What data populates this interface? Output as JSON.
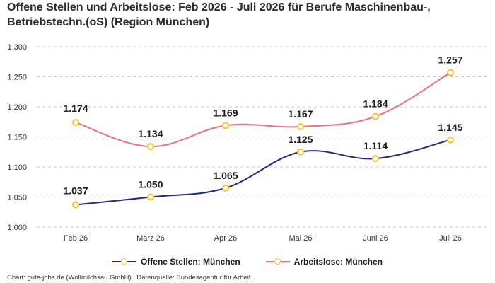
{
  "chart_data": {
    "type": "line",
    "title_lines": [
      "Offene Stellen und Arbeitslose: Feb 2026 - Juli 2026 für Berufe Maschinenbau-,",
      "Betriebstechn.(oS) (Region München)"
    ],
    "categories": [
      "Feb 26",
      "März 26",
      "Apr 26",
      "Mai 26",
      "Juni 26",
      "Juli 26"
    ],
    "y_ticks": [
      "1.000",
      "1.050",
      "1.100",
      "1.150",
      "1.200",
      "1.250",
      "1.300"
    ],
    "ylim": [
      1000,
      1300
    ],
    "grid": true,
    "legend_position": "bottom",
    "series": [
      {
        "name": "Offene Stellen: München",
        "color": "#1f2a80",
        "values": [
          1037,
          1050,
          1065,
          1125,
          1114,
          1145
        ],
        "labels": [
          "1.037",
          "1.050",
          "1.065",
          "1.125",
          "1.114",
          "1.145"
        ]
      },
      {
        "name": "Arbeitslose: München",
        "color": "#f07080",
        "values": [
          1174,
          1134,
          1169,
          1167,
          1184,
          1257
        ],
        "labels": [
          "1.174",
          "1.134",
          "1.169",
          "1.167",
          "1.184",
          "1.257"
        ]
      }
    ],
    "marker_color": "#f5c32c"
  },
  "footer": "Chart: gute-jobs.de (Wollmilchsau GmbH) | Datenquelle: Bundesagentur für Arbeit"
}
